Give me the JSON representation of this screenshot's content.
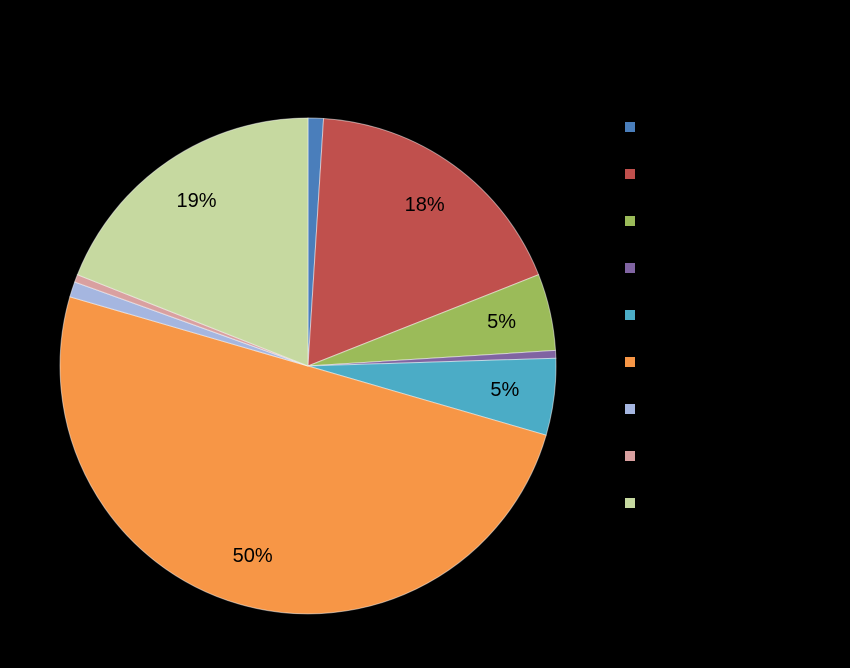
{
  "chart_data": {
    "type": "pie",
    "categories": [
      null,
      null,
      null,
      null,
      null,
      null,
      null,
      null,
      null
    ],
    "values": [
      1,
      18,
      5,
      0.5,
      5,
      50,
      1,
      0.5,
      19
    ],
    "value_labels": [
      null,
      "18%",
      "5%",
      null,
      "5%",
      "50%",
      null,
      null,
      "19%"
    ],
    "colors": [
      "#4a7ebb",
      "#c0504d",
      "#9bbb59",
      "#8064a2",
      "#4bacc6",
      "#f79646",
      "#a5b6e0",
      "#d9a0a0",
      "#c6d9a0"
    ],
    "legend": "right"
  }
}
